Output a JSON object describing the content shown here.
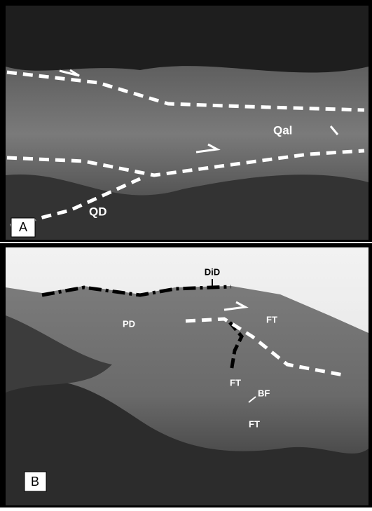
{
  "panels": [
    {
      "label": "A",
      "annotations": [
        "QD",
        "Qal"
      ]
    },
    {
      "label": "B",
      "annotations": [
        "DiD",
        "PD",
        "FT",
        "FT",
        "BF",
        "FT"
      ]
    }
  ]
}
